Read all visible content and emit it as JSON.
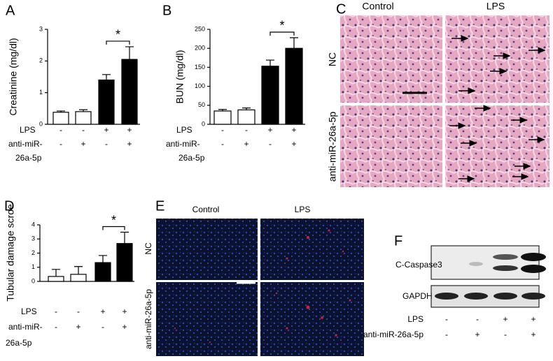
{
  "chart_data": [
    {
      "type": "bar",
      "panel": "A",
      "ylabel": "Creatinine (mg/dl)",
      "ylim": [
        0,
        3
      ],
      "yticks": [
        0,
        1,
        2,
        3
      ],
      "values": [
        0.38,
        0.4,
        1.4,
        2.05
      ],
      "errors": [
        0.04,
        0.06,
        0.17,
        0.4
      ],
      "colors": [
        "#ffffff",
        "#ffffff",
        "#000000",
        "#000000"
      ],
      "annotation": "*",
      "rows": [
        {
          "label": "LPS",
          "signs": [
            "-",
            "-",
            "+",
            "+"
          ]
        },
        {
          "label": "anti-miR-",
          "signs": [
            "-",
            "+",
            "-",
            "+"
          ]
        }
      ],
      "row_note": "26a-5p"
    },
    {
      "type": "bar",
      "panel": "B",
      "ylabel": "BUN (mg/dl)",
      "ylim": [
        0,
        250
      ],
      "yticks": [
        0,
        50,
        100,
        150,
        200,
        250
      ],
      "values": [
        35,
        38,
        153,
        200
      ],
      "errors": [
        4,
        5,
        16,
        28
      ],
      "colors": [
        "#ffffff",
        "#ffffff",
        "#000000",
        "#000000"
      ],
      "annotation": "*",
      "rows": [
        {
          "label": "LPS",
          "signs": [
            "-",
            "-",
            "+",
            "+"
          ]
        },
        {
          "label": "anti-miR-",
          "signs": [
            "-",
            "+",
            "-",
            "+"
          ]
        }
      ],
      "row_note": "26a-5p"
    },
    {
      "type": "bar",
      "panel": "D",
      "ylabel": "Tubular damage  scroe",
      "ylim": [
        0,
        4
      ],
      "yticks": [
        0,
        1,
        2,
        3,
        4
      ],
      "values": [
        0.35,
        0.5,
        1.33,
        2.68
      ],
      "errors": [
        0.5,
        0.55,
        0.5,
        0.8
      ],
      "colors": [
        "#ffffff",
        "#ffffff",
        "#000000",
        "#000000"
      ],
      "annotation": "*",
      "rows": [
        {
          "label": "LPS",
          "signs": [
            "-",
            "-",
            "+",
            "+"
          ]
        },
        {
          "label": "anti-miR-",
          "signs": [
            "-",
            "+",
            "-",
            "+"
          ]
        }
      ],
      "row_note": "26a-5p"
    }
  ],
  "panel_c": {
    "label": "C",
    "columns": [
      "Control",
      "LPS"
    ],
    "rows": [
      "NC",
      "anti-miR-26a-5p"
    ]
  },
  "panel_e": {
    "label": "E",
    "columns": [
      "Control",
      "LPS"
    ],
    "rows": [
      "NC",
      "anti-miR-26a-5p"
    ]
  },
  "panel_f": {
    "label": "F",
    "bands": [
      "C-Caspase3",
      "GAPDH"
    ],
    "rows": [
      {
        "label": "LPS",
        "signs": [
          "-",
          "-",
          "+",
          "+"
        ]
      },
      {
        "label": "anti-miR-26a-5p",
        "signs": [
          "-",
          "+",
          "-",
          "+"
        ]
      }
    ]
  }
}
